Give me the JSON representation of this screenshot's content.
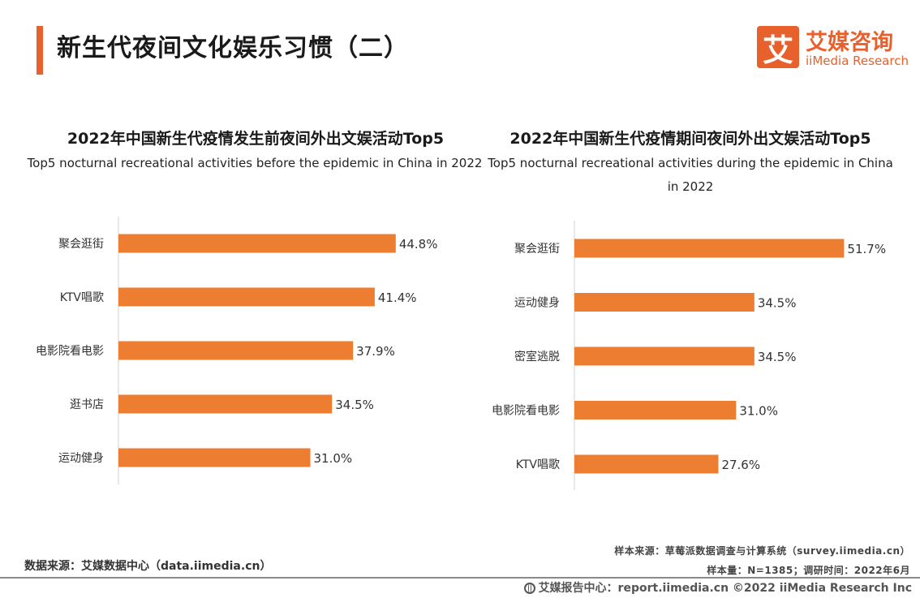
{
  "page": {
    "title": "新生代夜间文化娱乐习惯（二）",
    "accent_color": "#e8602c",
    "bar_color": "#ed7d31"
  },
  "logo": {
    "mark": "艾",
    "cn": "艾媒咨询",
    "en": "iiMedia Research"
  },
  "charts": {
    "left": {
      "title": "2022年中国新生代疫情发生前夜间外出文娱活动Top5",
      "subtitle": "Top5 nocturnal recreational activities before the epidemic in China in 2022"
    },
    "right": {
      "title": "2022年中国新生代疫情期间夜间外出文娱活动Top5",
      "subtitle": "Top5 nocturnal recreational activities during the epidemic in China in 2022"
    }
  },
  "chart_data": [
    {
      "type": "bar",
      "orientation": "horizontal",
      "title": "2022年中国新生代疫情发生前夜间外出文娱活动Top5",
      "subtitle": "Top5 nocturnal recreational activities before the epidemic in China in 2022",
      "categories": [
        "聚会逛街",
        "KTV唱歌",
        "电影院看电影",
        "逛书店",
        "运动健身"
      ],
      "values": [
        44.8,
        41.4,
        37.9,
        34.5,
        31.0
      ],
      "labels": [
        "44.8%",
        "41.4%",
        "37.9%",
        "34.5%",
        "31.0%"
      ],
      "unit": "%",
      "xlim": [
        0,
        60
      ]
    },
    {
      "type": "bar",
      "orientation": "horizontal",
      "title": "2022年中国新生代疫情期间夜间外出文娱活动Top5",
      "subtitle": "Top5 nocturnal recreational activities during the epidemic in China in 2022",
      "categories": [
        "聚会逛街",
        "运动健身",
        "密室逃脱",
        "电影院看电影",
        "KTV唱歌"
      ],
      "values": [
        51.7,
        34.5,
        34.5,
        31.0,
        27.6
      ],
      "labels": [
        "51.7%",
        "34.5%",
        "34.5%",
        "31.0%",
        "27.6%"
      ],
      "unit": "%",
      "xlim": [
        0,
        60
      ]
    }
  ],
  "footer": {
    "data_source": "数据来源：艾媒数据中心（data.iimedia.cn）",
    "sample_source": "样本来源：草莓派数据调查与计算系统（survey.iimedia.cn）",
    "sample_size": "样本量：N=1385；调研时间：2022年6月",
    "report_center": "艾媒报告中心：report.iimedia.cn  ©2022  iiMedia Research  Inc"
  }
}
